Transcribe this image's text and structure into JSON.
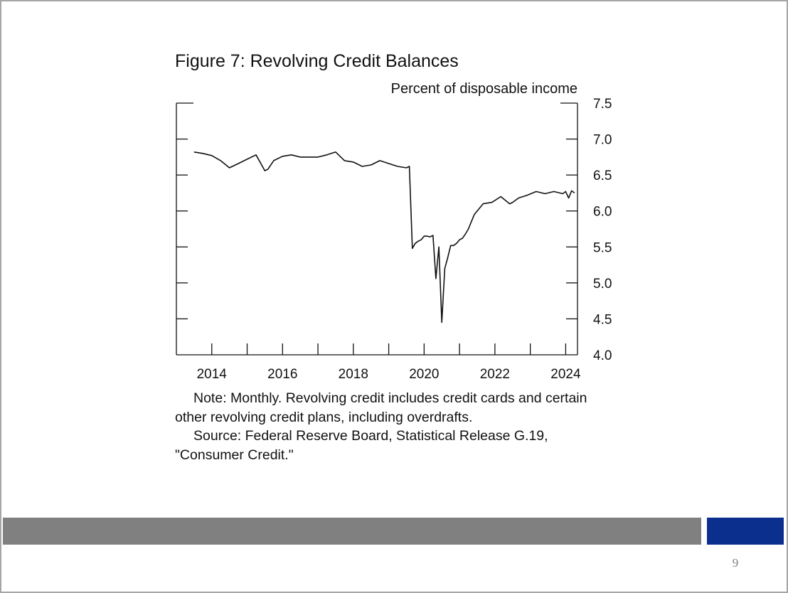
{
  "slide": {
    "page_number": "9",
    "colors": {
      "gray_bar": "#808080",
      "accent_bar": "#0a2f8c",
      "line": "#111111"
    }
  },
  "note": {
    "paragraph1": "Note: Monthly. Revolving credit includes credit cards and certain other revolving credit plans, including overdrafts.",
    "paragraph2": "Source: Federal Reserve Board, Statistical Release G.19,  \"Consumer Credit.\""
  },
  "chart_data": {
    "type": "line",
    "title": "Figure 7: Revolving Credit Balances",
    "ylabel": "Percent of disposable income",
    "xlabel": "",
    "ylim": [
      4.0,
      7.5
    ],
    "xlim": [
      "2013-07",
      "2024-11"
    ],
    "y_ticks": [
      "4.0",
      "4.5",
      "5.0",
      "5.5",
      "6.0",
      "6.5",
      "7.0",
      "7.5"
    ],
    "x_ticks": [
      "2014",
      "2016",
      "2018",
      "2020",
      "2022",
      "2024"
    ],
    "y_axis_position": "right",
    "grid": false,
    "legend": "none",
    "series": [
      {
        "x": [
          "2014-01",
          "2014-04",
          "2014-07",
          "2014-10",
          "2015-01",
          "2015-04",
          "2015-07",
          "2015-10",
          "2016-01",
          "2016-02",
          "2016-04",
          "2016-07",
          "2016-10",
          "2017-01",
          "2017-04",
          "2017-07",
          "2017-10",
          "2018-01",
          "2018-04",
          "2018-07",
          "2018-10",
          "2019-01",
          "2019-04",
          "2019-07",
          "2019-10",
          "2020-01",
          "2020-02",
          "2020-03",
          "2020-04",
          "2020-05",
          "2020-06",
          "2020-07",
          "2020-08",
          "2020-09",
          "2020-10",
          "2020-11",
          "2020-12",
          "2021-01",
          "2021-02",
          "2021-03",
          "2021-04",
          "2021-05",
          "2021-06",
          "2021-07",
          "2021-08",
          "2021-09",
          "2021-10",
          "2021-11",
          "2021-12",
          "2022-01",
          "2022-03",
          "2022-06",
          "2022-09",
          "2022-12",
          "2023-01",
          "2023-03",
          "2023-06",
          "2023-09",
          "2023-12",
          "2024-03",
          "2024-06",
          "2024-07",
          "2024-08",
          "2024-09",
          "2024-10"
        ],
        "values": [
          6.82,
          6.8,
          6.77,
          6.7,
          6.6,
          6.66,
          6.72,
          6.78,
          6.56,
          6.58,
          6.7,
          6.76,
          6.78,
          6.75,
          6.75,
          6.75,
          6.78,
          6.82,
          6.7,
          6.68,
          6.62,
          6.64,
          6.7,
          6.66,
          6.62,
          6.6,
          6.62,
          5.48,
          5.55,
          5.58,
          5.6,
          5.65,
          5.65,
          5.64,
          5.66,
          5.06,
          5.5,
          4.45,
          5.2,
          5.35,
          5.52,
          5.52,
          5.55,
          5.6,
          5.62,
          5.68,
          5.75,
          5.85,
          5.95,
          6.0,
          6.1,
          6.12,
          6.2,
          6.1,
          6.12,
          6.18,
          6.22,
          6.27,
          6.24,
          6.27,
          6.24,
          6.27,
          6.18,
          6.28,
          6.25
        ]
      }
    ]
  }
}
